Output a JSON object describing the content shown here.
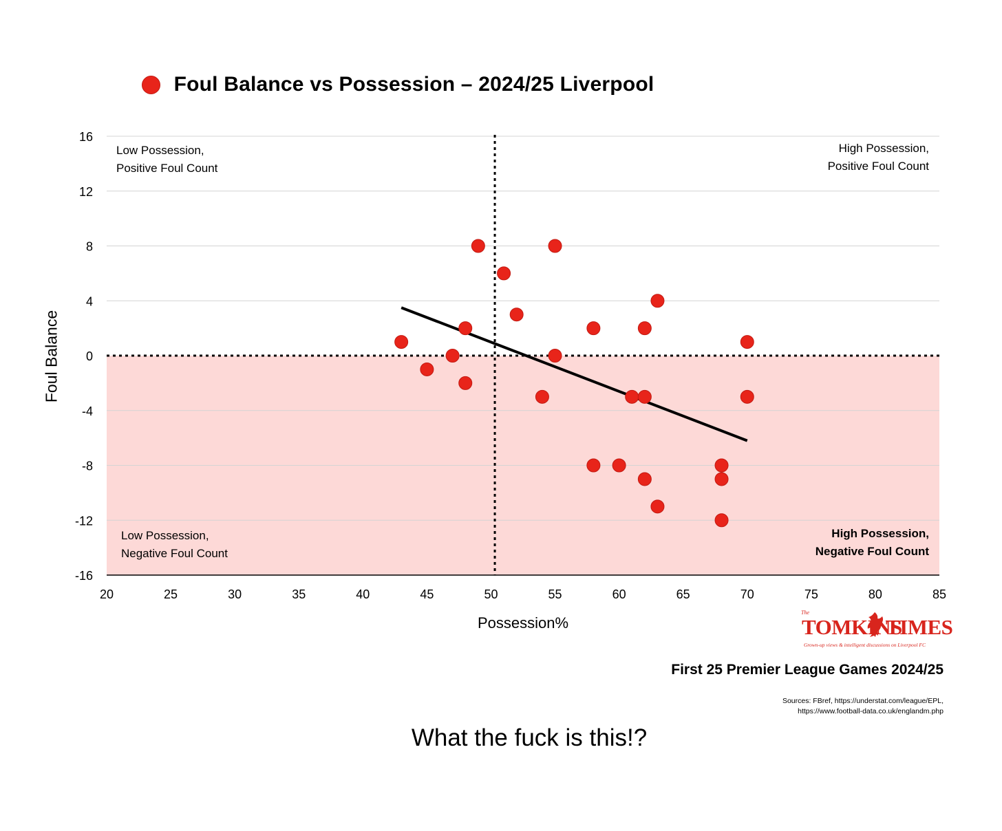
{
  "chart_data": {
    "type": "scatter",
    "title": "Foul Balance vs Possession – 2024/25 Liverpool",
    "xlabel": "Possession%",
    "ylabel": "Foul Balance",
    "xlim": [
      20,
      85
    ],
    "ylim": [
      -16,
      16
    ],
    "xticks": [
      20,
      25,
      30,
      35,
      40,
      45,
      50,
      55,
      60,
      65,
      70,
      75,
      80,
      85
    ],
    "yticks": [
      16,
      12,
      8,
      4,
      0,
      -4,
      -8,
      -12,
      -16
    ],
    "grid": true,
    "legend": "top-center",
    "marker_color": "#e8241a",
    "negative_region_color": "#fdd9d7",
    "reference_lines": {
      "x": 50.3,
      "y": 0
    },
    "trendline": {
      "x": [
        43,
        70
      ],
      "y": [
        3.5,
        -6.2
      ]
    },
    "series": [
      {
        "name": "Foul Balance vs Possession – 2024/25 Liverpool",
        "points": [
          {
            "x": 43,
            "y": 1
          },
          {
            "x": 45,
            "y": -1
          },
          {
            "x": 47,
            "y": 0
          },
          {
            "x": 48,
            "y": 2
          },
          {
            "x": 48,
            "y": -2
          },
          {
            "x": 49,
            "y": 8
          },
          {
            "x": 51,
            "y": 6
          },
          {
            "x": 52,
            "y": 3
          },
          {
            "x": 54,
            "y": -3
          },
          {
            "x": 55,
            "y": 8
          },
          {
            "x": 55,
            "y": 0
          },
          {
            "x": 58,
            "y": 2
          },
          {
            "x": 58,
            "y": -8
          },
          {
            "x": 60,
            "y": -8
          },
          {
            "x": 61,
            "y": -3
          },
          {
            "x": 62,
            "y": 2
          },
          {
            "x": 62,
            "y": -3
          },
          {
            "x": 62,
            "y": -9
          },
          {
            "x": 63,
            "y": 4
          },
          {
            "x": 63,
            "y": -11
          },
          {
            "x": 68,
            "y": -8
          },
          {
            "x": 68,
            "y": -9
          },
          {
            "x": 68,
            "y": -12
          },
          {
            "x": 70,
            "y": 1
          },
          {
            "x": 70,
            "y": -3
          }
        ]
      }
    ]
  },
  "quadrants": {
    "top_left": [
      "Low Possession,",
      "Positive Foul Count"
    ],
    "top_right": [
      "High Possession,",
      "Positive Foul Count"
    ],
    "bottom_left": [
      "Low Possession,",
      "Negative Foul Count"
    ],
    "bottom_right": [
      "High Possession,",
      "Negative Foul Count"
    ]
  },
  "logo": {
    "the": "The",
    "left": "TOMKINS",
    "right": "TIMES",
    "tagline": "Grown-up views & intelligent discussions on Liverpool FC"
  },
  "subtitle": "First 25 Premier League Games 2024/25",
  "sources": {
    "line1": "Sources: FBref, https://understat.com/league/EPL,",
    "line2": "https://www.football-data.co.uk/englandm.php"
  },
  "caption": "What the fuck is this!?"
}
